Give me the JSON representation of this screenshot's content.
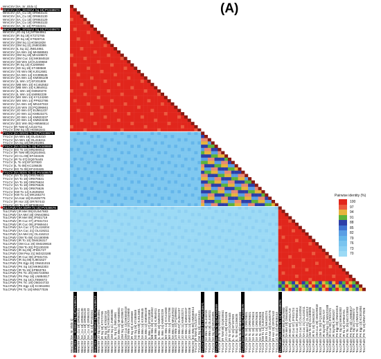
{
  "panel_label": "(A)",
  "legend": {
    "title": "Pairwise identity (%)",
    "items": [
      {
        "label": "100",
        "color": "#e1261c"
      },
      {
        "label": "97",
        "color": "#ec5a3e"
      },
      {
        "label": "94",
        "color": "#e6b43c"
      },
      {
        "label": "91",
        "color": "#5cb33a"
      },
      {
        "label": "88",
        "color": "#2d3ea8"
      },
      {
        "label": "85",
        "color": "#3f73d1"
      },
      {
        "label": "82",
        "color": "#5a9ee4"
      },
      {
        "label": "79",
        "color": "#65b6ea"
      },
      {
        "label": "76",
        "color": "#7ac4ef"
      },
      {
        "label": "73",
        "color": "#8bd0f3"
      },
      {
        "label": "70",
        "color": "#9cdaf5"
      }
    ]
  },
  "sequences": [
    {
      "label": "WmCSV [SA_Sr_Eldo 1]",
      "group": "WmCSV"
    },
    {
      "label": "WmCSV [SA_SDIWA2 Sq 18] PV448674",
      "group": "WmCSV",
      "highlight": true,
      "star": true
    },
    {
      "label": "WmCSV [SA_Cu 18] OR863131",
      "group": "WmCSV"
    },
    {
      "label": "WmCSV [SA_Cu 18] OR863130",
      "group": "WmCSV"
    },
    {
      "label": "WmCSV [SA_Cu 18] OR863129",
      "group": "WmCSV"
    },
    {
      "label": "WmCSV [SA_Cu 18] OR863133",
      "group": "WmCSV"
    },
    {
      "label": "WmCSV [SA_Sr 13] FP332241",
      "group": "WmCSV"
    },
    {
      "label": "WmCSV [SA_SDIWA2 Sq 15] PV448673",
      "group": "WmCSV",
      "highlight": true,
      "star": true
    },
    {
      "label": "WmCSV [JO Sq 14] MT584861",
      "group": "WmCSV"
    },
    {
      "label": "WmCSV [IR Sq 18] KT272765",
      "group": "WmCSV"
    },
    {
      "label": "WmCSV [IR Sq 18] KT828716",
      "group": "WmCSV"
    },
    {
      "label": "WmCSV [OM Sq 1] HG561828",
      "group": "WmCSV"
    },
    {
      "label": "WmCSV [OM Sq 11] JN803386",
      "group": "WmCSV"
    },
    {
      "label": "WmCSV [IL Sq 11] JN814861",
      "group": "WmCSV"
    },
    {
      "label": "WmCSV [SA Wm 15] MH588581",
      "group": "WmCSV"
    },
    {
      "label": "WmCSV [OM Sq 18] MH228672",
      "group": "WmCSV"
    },
    {
      "label": "WmCSV [OM Cuc 15] MK584518",
      "group": "WmCSV"
    },
    {
      "label": "WmCSV [SD Wm 10] KJ249650",
      "group": "WmCSV"
    },
    {
      "label": "WmCSV [IR Sq 10] KJ269560",
      "group": "WmCSV"
    },
    {
      "label": "WmCSV [SD Sq 18] KT488569",
      "group": "WmCSV"
    },
    {
      "label": "WmCSV [YE Wm 09] KJ012681",
      "group": "WmCSV"
    },
    {
      "label": "WmCSV [SA Wm 14] KX399645",
      "group": "WmCSV"
    },
    {
      "label": "WmCSV [SA Wm 12] KM006109",
      "group": "WmCSV"
    },
    {
      "label": "WmCSV [IL Wm 17] EF201809",
      "group": "WmCSV"
    },
    {
      "label": "WmCSV [MB Wm 10] KC462552",
      "group": "WmCSV"
    },
    {
      "label": "WmCSV [MB Wm 10] KJ864911",
      "group": "WmCSV"
    },
    {
      "label": "WmCSV [IL Wm 18] KM820270",
      "group": "WmCSV"
    },
    {
      "label": "WmCSV [IL Wm 14] KM892239",
      "group": "WmCSV"
    },
    {
      "label": "WmCSV [MX Wm 14] KY124260",
      "group": "WmCSV"
    },
    {
      "label": "WmCSV [MX Wm 14] PP822786",
      "group": "WmCSV"
    },
    {
      "label": "WmCSV [SA Wm 10] MN187022",
      "group": "WmCSV"
    },
    {
      "label": "WmCSV [US Wm 23] PQ396661",
      "group": "WmCSV"
    },
    {
      "label": "WmCSV [JO Wm 07] EU561237",
      "group": "WmCSV"
    },
    {
      "label": "WmCSV [JO Wm 11] KM823271",
      "group": "WmCSV"
    },
    {
      "label": "WmCSV [JO Wm 14] KM823237",
      "group": "WmCSV"
    },
    {
      "label": "WmCSV [JO Wm 14] KM823238",
      "group": "WmCSV"
    },
    {
      "label": "WmCSV [EG Wm 06] HM566514",
      "group": "WmCSV"
    },
    {
      "label": "TYLCV [IR ToM 6] AJ132711",
      "group": "WmCSV"
    },
    {
      "label": "TYLCV [OM Sq 10] HG561641",
      "group": "WmCSV"
    },
    {
      "label": "TYLCV [SA SDIN2 To 15] PV448671",
      "group": "TYLCV",
      "highlight": true,
      "star": true
    },
    {
      "label": "TYLCV [SA Wm 16] OL416210",
      "group": "TYLCV"
    },
    {
      "label": "TYLCV [SA Wm 16] OL416211",
      "group": "TYLCV"
    },
    {
      "label": "TYLCV [SA Sq 18] MK291891",
      "group": "TYLCV"
    },
    {
      "label": "TYLCV [SA SDIN To 15] PV448669",
      "group": "TYLCV",
      "highlight": true,
      "star": true
    },
    {
      "label": "TYLCV [EG To 15] MN256012",
      "group": "TYLCV"
    },
    {
      "label": "TYLCV [IR ToM 88] DQ010841",
      "group": "TYLCV"
    },
    {
      "label": "TYLCV [JO Cu 08] EF433426",
      "group": "TYLCV"
    },
    {
      "label": "TYLCV [IR To 07] DQ076445",
      "group": "TYLCV"
    },
    {
      "label": "TYLCV [IL To 10] EF107820",
      "group": "TYLCV"
    },
    {
      "label": "TYLCV [IL To 08] KC106635",
      "group": "TYLCV"
    },
    {
      "label": "TYLCV [EG To 08] EF433426",
      "group": "TYLCV"
    },
    {
      "label": "TYLCV [SA SDIN To 15] PV448670",
      "group": "TYLCV",
      "highlight": true,
      "star": true
    },
    {
      "label": "TYLCV [SA To 18] OR878831",
      "group": "TYLCV"
    },
    {
      "label": "TYLCV [SA To 18] OR876621",
      "group": "TYLCV"
    },
    {
      "label": "TYLCV [SA To 18] OR876624",
      "group": "TYLCV"
    },
    {
      "label": "TYLCV [SA To 18] OR876625",
      "group": "TYLCV"
    },
    {
      "label": "TYLCV [SA To 18] OR876626",
      "group": "TYLCV"
    },
    {
      "label": "TYLCV [KW To 14] KJ639294",
      "group": "TYLCV"
    },
    {
      "label": "TYLCV [KW To 14] MK165274",
      "group": "TYLCV"
    },
    {
      "label": "TYLCV [SA Kwt 18] EU635776",
      "group": "TYLCV"
    },
    {
      "label": "TYLCV [IR Hor 23] OR787443",
      "group": "TYLCV"
    },
    {
      "label": "TYLCV [JO To 17] MF938153",
      "group": "TYLCV"
    },
    {
      "label": "ToLCPalV [SA SDPA To 15] PV448676",
      "group": "ToLCPalV",
      "highlight": true,
      "star": true
    },
    {
      "label": "ToLCPalV [IR Mel 09] EU547683",
      "group": "ToLCPalV"
    },
    {
      "label": "ToLCPalV [SA Mel 19] ON643651",
      "group": "ToLCPalV"
    },
    {
      "label": "ToLCPalV [IR Mel 09] JF931719",
      "group": "ToLCPalV"
    },
    {
      "label": "ToLCPalV [IR Cuc 07] JF931724",
      "group": "ToLCPalV"
    },
    {
      "label": "ToLCPalV [IR Cuc 09] JF969444",
      "group": "ToLCPalV"
    },
    {
      "label": "ToLCPalV [SA Cuc 17] OL419204",
      "group": "ToLCPalV"
    },
    {
      "label": "ToLCPalV [SA Cuc 21] OL419211",
      "group": "ToLCPalV"
    },
    {
      "label": "ToLCPalV [SA Mel 21] OL416213",
      "group": "ToLCPalV"
    },
    {
      "label": "ToLCPalV [OM To 09] GU180095",
      "group": "ToLCPalV"
    },
    {
      "label": "ToLCPalV [IR To 10] OM426317",
      "group": "ToLCPalV"
    },
    {
      "label": "ToLCPalV [OM Cuc 20] OM229818",
      "group": "ToLCPalV"
    },
    {
      "label": "ToLCPalV [OM To 20] PQ130228",
      "group": "ToLCPalV"
    },
    {
      "label": "ToLCPalV [IR Sq 09] JF931727",
      "group": "ToLCPalV"
    },
    {
      "label": "ToLCPalV [OM Pep 21] MZ423188",
      "group": "ToLCPalV"
    },
    {
      "label": "ToLCPalV [IR Cuc 09] JF931721",
      "group": "ToLCPalV"
    },
    {
      "label": "ToLCPalV [IR Sq 08] KJ801627",
      "group": "ToLCPalV"
    },
    {
      "label": "ToLCPalV [PK Egp 20] ON631015",
      "group": "ToLCPalV"
    },
    {
      "label": "ToLCPalV [PK Sq 16] MK962303",
      "group": "ToLCPalV"
    },
    {
      "label": "ToLCPalV [IR Ta 15] KP863751",
      "group": "ToLCPalV"
    },
    {
      "label": "ToLCPalV [PK Tic 20] MG723093",
      "group": "ToLCPalV"
    },
    {
      "label": "ToLCPalV [PK Pep 16] LN884817",
      "group": "ToLCPalV"
    },
    {
      "label": "ToLCPalV [PK Sq 16] LT856572",
      "group": "ToLCPalV"
    },
    {
      "label": "ToLCPalV [PK Tic 19] OM244733",
      "group": "ToLCPalV"
    },
    {
      "label": "ToLCPalV [PK Egp 13] KC551804",
      "group": "ToLCPalV"
    },
    {
      "label": "ToLCPalV [PK To 18] MN577026",
      "group": "ToLCPalV"
    }
  ]
}
